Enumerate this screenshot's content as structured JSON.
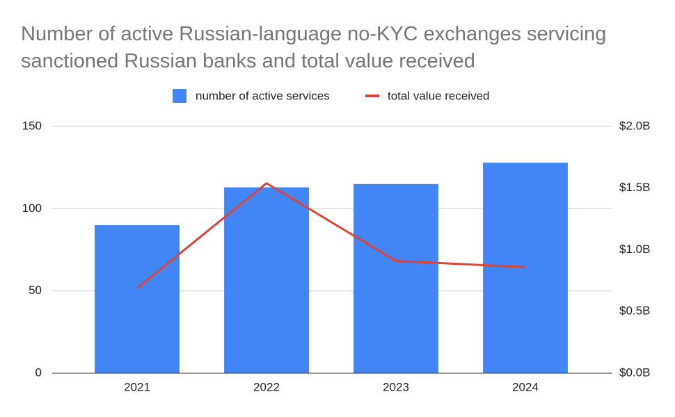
{
  "chart_data": {
    "type": "bar",
    "title": "Number of active Russian-language no-KYC exchanges servicing sanctioned Russian banks and total value received",
    "categories": [
      "2021",
      "2022",
      "2023",
      "2024"
    ],
    "series": [
      {
        "name": "number of active services",
        "type": "bar",
        "color": "#4285f4",
        "values": [
          90,
          113,
          115,
          128
        ]
      },
      {
        "name": "total value received",
        "type": "line",
        "axis": "y2",
        "color": "#db4437",
        "values": [
          690000000,
          1540000000,
          910000000,
          860000000
        ]
      }
    ],
    "ylim": [
      0,
      150
    ],
    "yticks": [
      0,
      50,
      100,
      150
    ],
    "y2lim": [
      0,
      2000000000
    ],
    "y2ticks": [
      {
        "value": 0,
        "label": "$0.0B"
      },
      {
        "value": 500000000,
        "label": "$0.5B"
      },
      {
        "value": 1000000000,
        "label": "$1.0B"
      },
      {
        "value": 1500000000,
        "label": "$1.5B"
      },
      {
        "value": 2000000000,
        "label": "$2.0B"
      }
    ],
    "grid": true,
    "legend": "top"
  }
}
